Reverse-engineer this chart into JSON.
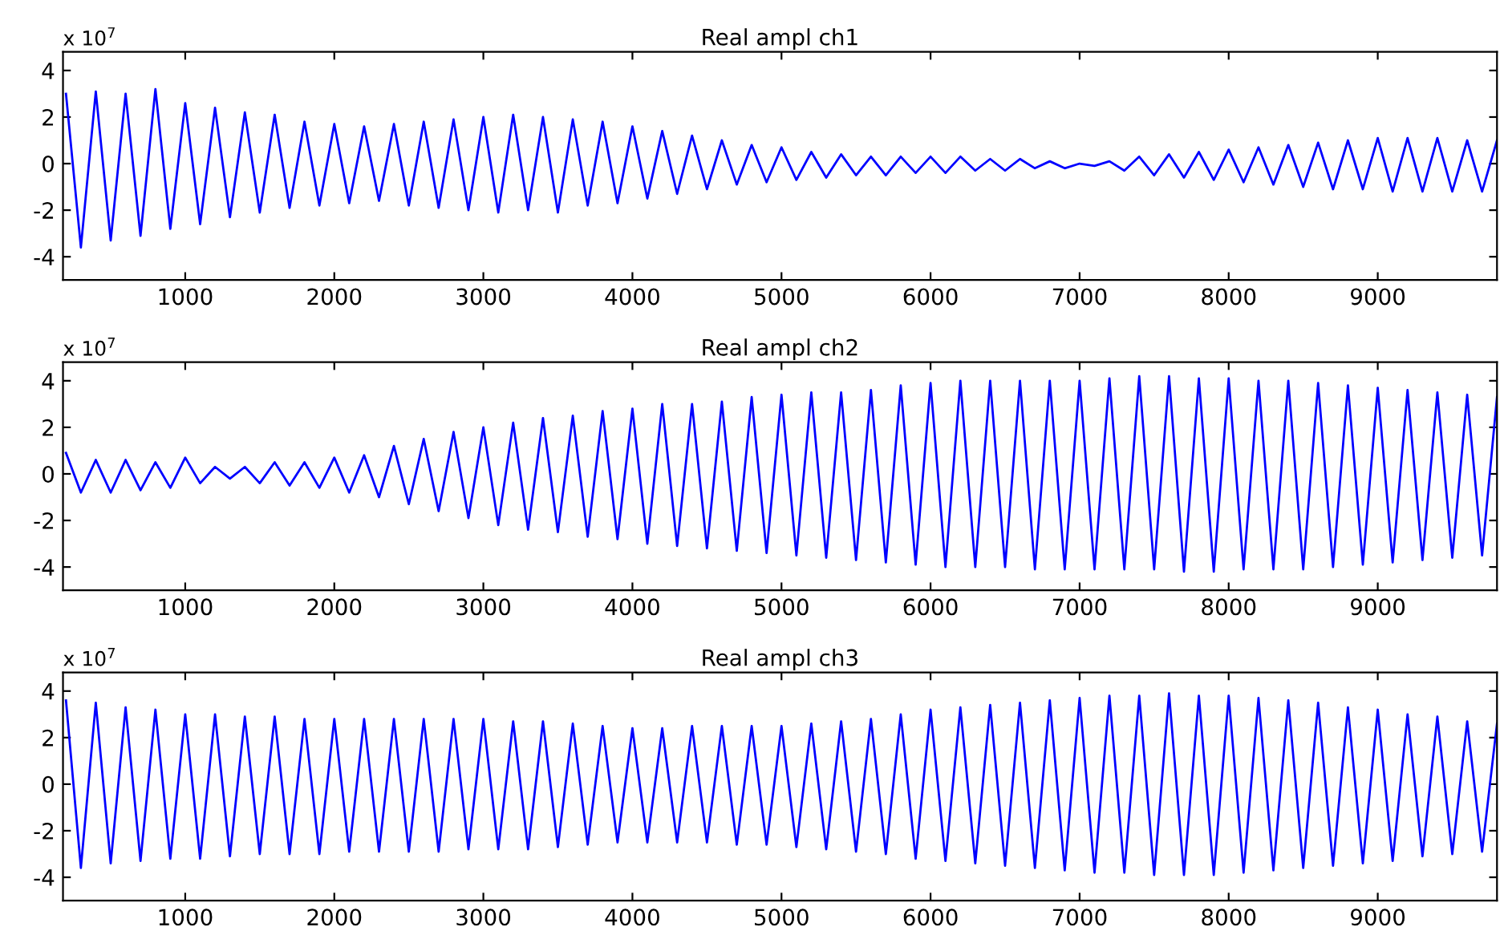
{
  "chart_data": [
    {
      "type": "line",
      "title": "Real ampl ch1",
      "annotations": [
        "x 10$^{7}$"
      ],
      "xlim": [
        180,
        9800
      ],
      "ylim": [
        -5,
        4.8
      ],
      "xticks": [
        1000,
        2000,
        3000,
        4000,
        5000,
        6000,
        7000,
        8000,
        9000
      ],
      "yticks": [
        -4,
        -2,
        0,
        2,
        4
      ],
      "grid": false,
      "legend": false,
      "x": [
        200,
        300,
        400,
        500,
        600,
        700,
        800,
        900,
        1000,
        1100,
        1200,
        1300,
        1400,
        1500,
        1600,
        1700,
        1800,
        1900,
        2000,
        2100,
        2200,
        2300,
        2400,
        2500,
        2600,
        2700,
        2800,
        2900,
        3000,
        3100,
        3200,
        3300,
        3400,
        3500,
        3600,
        3700,
        3800,
        3900,
        4000,
        4100,
        4200,
        4300,
        4400,
        4500,
        4600,
        4700,
        4800,
        4900,
        5000,
        5100,
        5200,
        5300,
        5400,
        5500,
        5600,
        5700,
        5800,
        5900,
        6000,
        6100,
        6200,
        6300,
        6400,
        6500,
        6600,
        6700,
        6800,
        6900,
        7000,
        7100,
        7200,
        7300,
        7400,
        7500,
        7600,
        7700,
        7800,
        7900,
        8000,
        8100,
        8200,
        8300,
        8400,
        8500,
        8600,
        8700,
        8800,
        8900,
        9000,
        9100,
        9200,
        9300,
        9400,
        9500,
        9600,
        9700,
        9800
      ],
      "series": [
        {
          "color": "#0000ff",
          "values": [
            3.0,
            -3.6,
            3.1,
            -3.3,
            3.0,
            -3.1,
            3.2,
            -2.8,
            2.6,
            -2.6,
            2.4,
            -2.3,
            2.2,
            -2.1,
            2.1,
            -1.9,
            1.8,
            -1.8,
            1.7,
            -1.7,
            1.6,
            -1.6,
            1.7,
            -1.8,
            1.8,
            -1.9,
            1.9,
            -2.0,
            2.0,
            -2.1,
            2.1,
            -2.0,
            2.0,
            -2.1,
            1.9,
            -1.8,
            1.8,
            -1.7,
            1.6,
            -1.5,
            1.4,
            -1.3,
            1.2,
            -1.1,
            1.0,
            -0.9,
            0.8,
            -0.8,
            0.7,
            -0.7,
            0.5,
            -0.6,
            0.4,
            -0.5,
            0.3,
            -0.5,
            0.3,
            -0.4,
            0.3,
            -0.4,
            0.3,
            -0.3,
            0.2,
            -0.3,
            0.2,
            -0.2,
            0.1,
            -0.2,
            0.0,
            -0.1,
            0.1,
            -0.3,
            0.3,
            -0.5,
            0.4,
            -0.6,
            0.5,
            -0.7,
            0.6,
            -0.8,
            0.7,
            -0.9,
            0.8,
            -1.0,
            0.9,
            -1.1,
            1.0,
            -1.1,
            1.1,
            -1.2,
            1.1,
            -1.2,
            1.1,
            -1.2,
            1.0,
            -1.2,
            1.0
          ]
        }
      ]
    },
    {
      "type": "line",
      "title": "Real ampl ch2",
      "annotations": [
        "x 10$^{7}$"
      ],
      "xlim": [
        180,
        9800
      ],
      "ylim": [
        -5,
        4.8
      ],
      "xticks": [
        1000,
        2000,
        3000,
        4000,
        5000,
        6000,
        7000,
        8000,
        9000
      ],
      "yticks": [
        -4,
        -2,
        0,
        2,
        4
      ],
      "grid": false,
      "legend": false,
      "x": [
        200,
        300,
        400,
        500,
        600,
        700,
        800,
        900,
        1000,
        1100,
        1200,
        1300,
        1400,
        1500,
        1600,
        1700,
        1800,
        1900,
        2000,
        2100,
        2200,
        2300,
        2400,
        2500,
        2600,
        2700,
        2800,
        2900,
        3000,
        3100,
        3200,
        3300,
        3400,
        3500,
        3600,
        3700,
        3800,
        3900,
        4000,
        4100,
        4200,
        4300,
        4400,
        4500,
        4600,
        4700,
        4800,
        4900,
        5000,
        5100,
        5200,
        5300,
        5400,
        5500,
        5600,
        5700,
        5800,
        5900,
        6000,
        6100,
        6200,
        6300,
        6400,
        6500,
        6600,
        6700,
        6800,
        6900,
        7000,
        7100,
        7200,
        7300,
        7400,
        7500,
        7600,
        7700,
        7800,
        7900,
        8000,
        8100,
        8200,
        8300,
        8400,
        8500,
        8600,
        8700,
        8800,
        8900,
        9000,
        9100,
        9200,
        9300,
        9400,
        9500,
        9600,
        9700,
        9800
      ],
      "series": [
        {
          "color": "#0000ff",
          "values": [
            0.9,
            -0.8,
            0.6,
            -0.8,
            0.6,
            -0.7,
            0.5,
            -0.6,
            0.7,
            -0.4,
            0.3,
            -0.2,
            0.3,
            -0.4,
            0.5,
            -0.5,
            0.5,
            -0.6,
            0.7,
            -0.8,
            0.8,
            -1.0,
            1.2,
            -1.3,
            1.5,
            -1.6,
            1.8,
            -1.9,
            2.0,
            -2.2,
            2.2,
            -2.4,
            2.4,
            -2.5,
            2.5,
            -2.7,
            2.7,
            -2.8,
            2.8,
            -3.0,
            3.0,
            -3.1,
            3.0,
            -3.2,
            3.1,
            -3.3,
            3.3,
            -3.4,
            3.4,
            -3.5,
            3.5,
            -3.6,
            3.5,
            -3.7,
            3.6,
            -3.8,
            3.8,
            -3.9,
            3.9,
            -4.0,
            4.0,
            -4.0,
            4.0,
            -4.0,
            4.0,
            -4.1,
            4.0,
            -4.1,
            4.0,
            -4.1,
            4.1,
            -4.1,
            4.2,
            -4.1,
            4.2,
            -4.2,
            4.1,
            -4.2,
            4.1,
            -4.1,
            4.0,
            -4.1,
            4.0,
            -4.1,
            3.9,
            -4.0,
            3.8,
            -3.9,
            3.7,
            -3.8,
            3.6,
            -3.7,
            3.5,
            -3.6,
            3.4,
            -3.5,
            3.3
          ]
        }
      ]
    },
    {
      "type": "line",
      "title": "Real ampl ch3",
      "annotations": [
        "x 10$^{7}$"
      ],
      "xlim": [
        180,
        9800
      ],
      "ylim": [
        -5,
        4.8
      ],
      "xticks": [
        1000,
        2000,
        3000,
        4000,
        5000,
        6000,
        7000,
        8000,
        9000
      ],
      "yticks": [
        -4,
        -2,
        0,
        2,
        4
      ],
      "grid": false,
      "legend": false,
      "x": [
        200,
        300,
        400,
        500,
        600,
        700,
        800,
        900,
        1000,
        1100,
        1200,
        1300,
        1400,
        1500,
        1600,
        1700,
        1800,
        1900,
        2000,
        2100,
        2200,
        2300,
        2400,
        2500,
        2600,
        2700,
        2800,
        2900,
        3000,
        3100,
        3200,
        3300,
        3400,
        3500,
        3600,
        3700,
        3800,
        3900,
        4000,
        4100,
        4200,
        4300,
        4400,
        4500,
        4600,
        4700,
        4800,
        4900,
        5000,
        5100,
        5200,
        5300,
        5400,
        5500,
        5600,
        5700,
        5800,
        5900,
        6000,
        6100,
        6200,
        6300,
        6400,
        6500,
        6600,
        6700,
        6800,
        6900,
        7000,
        7100,
        7200,
        7300,
        7400,
        7500,
        7600,
        7700,
        7800,
        7900,
        8000,
        8100,
        8200,
        8300,
        8400,
        8500,
        8600,
        8700,
        8800,
        8900,
        9000,
        9100,
        9200,
        9300,
        9400,
        9500,
        9600,
        9700,
        9800
      ],
      "series": [
        {
          "color": "#0000ff",
          "values": [
            3.6,
            -3.6,
            3.5,
            -3.4,
            3.3,
            -3.3,
            3.2,
            -3.2,
            3.0,
            -3.2,
            3.0,
            -3.1,
            2.9,
            -3.0,
            2.9,
            -3.0,
            2.8,
            -3.0,
            2.8,
            -2.9,
            2.8,
            -2.9,
            2.8,
            -2.9,
            2.8,
            -2.9,
            2.8,
            -2.8,
            2.8,
            -2.8,
            2.7,
            -2.8,
            2.7,
            -2.7,
            2.6,
            -2.6,
            2.5,
            -2.5,
            2.4,
            -2.5,
            2.4,
            -2.5,
            2.5,
            -2.5,
            2.5,
            -2.6,
            2.5,
            -2.6,
            2.5,
            -2.7,
            2.6,
            -2.8,
            2.7,
            -2.9,
            2.8,
            -3.0,
            3.0,
            -3.2,
            3.2,
            -3.3,
            3.3,
            -3.4,
            3.4,
            -3.5,
            3.5,
            -3.6,
            3.6,
            -3.7,
            3.7,
            -3.8,
            3.8,
            -3.8,
            3.8,
            -3.9,
            3.9,
            -3.9,
            3.8,
            -3.9,
            3.8,
            -3.8,
            3.7,
            -3.7,
            3.6,
            -3.6,
            3.5,
            -3.5,
            3.3,
            -3.4,
            3.2,
            -3.3,
            3.0,
            -3.1,
            2.9,
            -3.0,
            2.7,
            -2.9,
            2.6
          ]
        }
      ]
    }
  ]
}
